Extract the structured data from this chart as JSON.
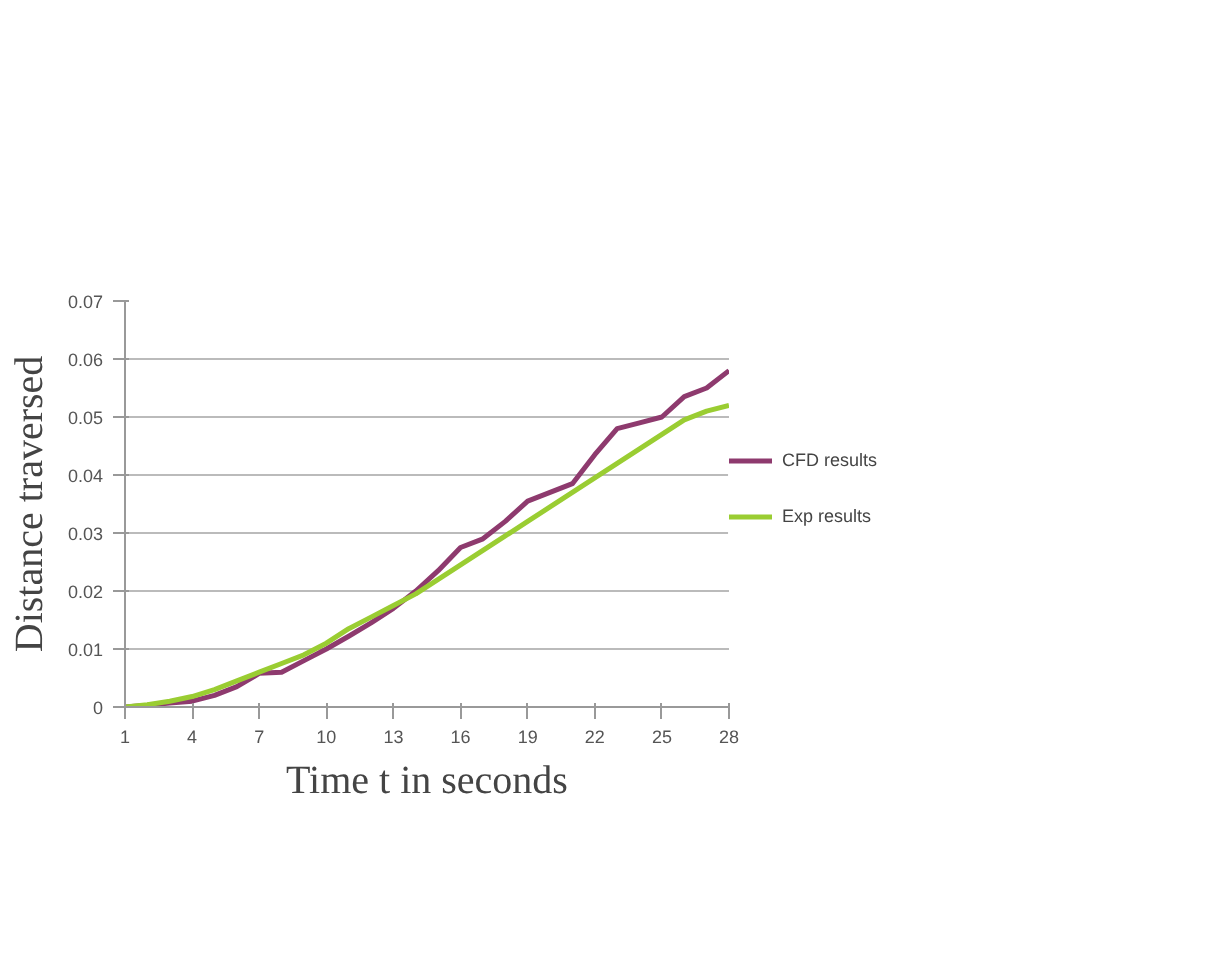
{
  "chart_data": {
    "type": "line",
    "xlabel": "Time t in seconds",
    "ylabel": "Distance traversed",
    "x": [
      1,
      2,
      3,
      4,
      5,
      6,
      7,
      8,
      9,
      10,
      11,
      12,
      13,
      14,
      15,
      16,
      17,
      18,
      19,
      20,
      21,
      22,
      23,
      24,
      25,
      26,
      27,
      28
    ],
    "series": [
      {
        "name": "CFD results",
        "color": "#8e3a6e",
        "values": [
          0,
          0.0003,
          0.0007,
          0.001,
          0.002,
          0.0035,
          0.0058,
          0.006,
          0.008,
          0.01,
          0.0122,
          0.0145,
          0.017,
          0.02,
          0.0235,
          0.0275,
          0.029,
          0.032,
          0.0355,
          0.037,
          0.0385,
          0.0435,
          0.048,
          0.049,
          0.05,
          0.0535,
          0.055,
          0.058
        ]
      },
      {
        "name": "Exp results",
        "color": "#9acd32",
        "values": [
          0,
          0.0004,
          0.001,
          0.0018,
          0.003,
          0.0045,
          0.006,
          0.0075,
          0.009,
          0.011,
          0.0135,
          0.0155,
          0.0175,
          0.0195,
          0.022,
          0.0245,
          0.027,
          0.0295,
          0.032,
          0.0345,
          0.037,
          0.0395,
          0.042,
          0.0445,
          0.047,
          0.0495,
          0.051,
          0.052
        ]
      }
    ],
    "xlim": [
      1,
      28
    ],
    "xticks": [
      1,
      4,
      7,
      10,
      13,
      16,
      19,
      22,
      25,
      28
    ],
    "ylim": [
      0,
      0.07
    ],
    "yticks": [
      0,
      0.01,
      0.02,
      0.03,
      0.04,
      0.05,
      0.06,
      0.07
    ],
    "grid": "y",
    "legend": "right",
    "marker": "none",
    "line_style": "solid"
  }
}
